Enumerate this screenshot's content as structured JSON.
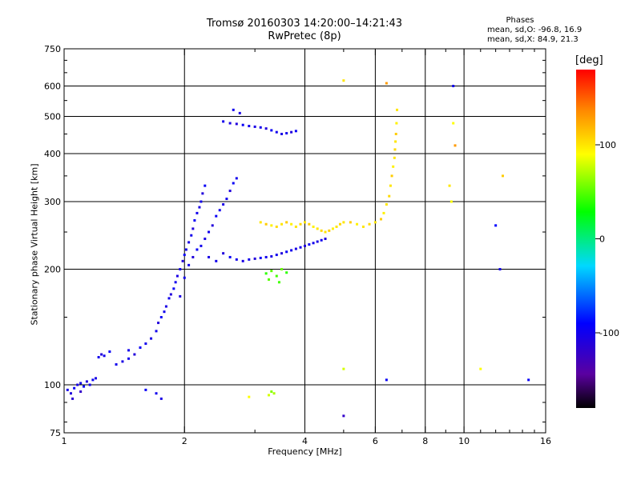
{
  "chart_data": {
    "type": "scatter",
    "title": "Tromsø 20160303 14:20:00–14:21:43",
    "subtitle": "RwPretec (8p)",
    "xlabel": "Frequency [MHz]",
    "ylabel": "Stationary phase Virtual Height [km]",
    "x_scale": "log",
    "y_scale": "log",
    "xlim": [
      1,
      16
    ],
    "ylim": [
      75,
      750
    ],
    "x_ticks": [
      1,
      2,
      4,
      6,
      8,
      10,
      16
    ],
    "x_ticks_labeled": [
      "1",
      "2",
      "4",
      "6",
      "8",
      "10",
      "16"
    ],
    "x_minor_ticks": [
      3,
      5,
      7,
      9,
      11,
      12,
      13,
      14,
      15
    ],
    "y_ticks": [
      75,
      100,
      200,
      300,
      400,
      500,
      600,
      750
    ],
    "y_tick_labels": [
      "75",
      "100",
      "200",
      "300",
      "400",
      "500",
      "600",
      "750"
    ],
    "grid": true,
    "legend": {
      "title": "Phases",
      "lines": [
        "mean, sd,O:  -96.8, 16.9",
        "mean, sd,X:  84.9, 21.3"
      ]
    },
    "colorbar": {
      "label": "[deg]",
      "range": [
        -180,
        180
      ],
      "ticks": [
        100,
        0,
        -100
      ],
      "tick_labels": [
        "100",
        "0",
        "-100"
      ]
    },
    "series": [
      {
        "points": [
          [
            1.02,
            97,
            -100
          ],
          [
            1.04,
            95,
            -110
          ],
          [
            1.06,
            98,
            -95
          ],
          [
            1.08,
            100,
            -105
          ],
          [
            1.1,
            101,
            -100
          ],
          [
            1.12,
            99,
            -90
          ],
          [
            1.14,
            102,
            -110
          ],
          [
            1.16,
            100,
            -100
          ],
          [
            1.18,
            103,
            -95
          ],
          [
            1.2,
            104,
            -105
          ],
          [
            1.22,
            118,
            -100
          ],
          [
            1.24,
            120,
            -110
          ],
          [
            1.26,
            119,
            -100
          ],
          [
            1.3,
            122,
            -95
          ],
          [
            1.35,
            113,
            -100
          ],
          [
            1.4,
            115,
            -105
          ],
          [
            1.45,
            117,
            -100
          ],
          [
            1.5,
            120,
            -110
          ],
          [
            1.55,
            125,
            -95
          ],
          [
            1.6,
            128,
            -100
          ],
          [
            1.65,
            132,
            -105
          ],
          [
            1.7,
            138,
            -100
          ],
          [
            1.72,
            145,
            -110
          ],
          [
            1.75,
            150,
            -95
          ],
          [
            1.78,
            155,
            -100
          ],
          [
            1.8,
            160,
            -105
          ],
          [
            1.83,
            168,
            -100
          ],
          [
            1.85,
            172,
            -110
          ],
          [
            1.88,
            178,
            -95
          ],
          [
            1.9,
            185,
            -100
          ],
          [
            1.92,
            192,
            -105
          ],
          [
            1.95,
            200,
            -100
          ],
          [
            1.98,
            210,
            -110
          ],
          [
            2.0,
            218,
            -95
          ],
          [
            2.02,
            225,
            -100
          ],
          [
            2.05,
            235,
            -105
          ],
          [
            2.08,
            245,
            -100
          ],
          [
            2.1,
            255,
            -110
          ],
          [
            2.12,
            268,
            -95
          ],
          [
            2.15,
            280,
            -100
          ],
          [
            2.18,
            290,
            -105
          ],
          [
            2.2,
            300,
            -100
          ],
          [
            2.22,
            315,
            -110
          ],
          [
            2.25,
            330,
            -95
          ],
          [
            2.0,
            190,
            -100
          ],
          [
            1.95,
            170,
            -105
          ],
          [
            2.05,
            205,
            -100
          ],
          [
            2.1,
            215,
            -110
          ],
          [
            2.15,
            225,
            -95
          ],
          [
            2.2,
            230,
            -100
          ],
          [
            2.25,
            240,
            -105
          ],
          [
            2.3,
            250,
            -100
          ],
          [
            2.35,
            260,
            -110
          ],
          [
            2.4,
            275,
            -95
          ],
          [
            2.45,
            285,
            -100
          ],
          [
            2.5,
            295,
            -105
          ],
          [
            2.55,
            305,
            -100
          ],
          [
            2.6,
            320,
            -110
          ],
          [
            2.65,
            335,
            -95
          ],
          [
            2.7,
            345,
            -100
          ],
          [
            2.3,
            215,
            -105
          ],
          [
            2.4,
            210,
            -100
          ],
          [
            2.5,
            220,
            -110
          ],
          [
            2.6,
            215,
            -95
          ],
          [
            2.7,
            212,
            -100
          ],
          [
            2.8,
            210,
            -105
          ],
          [
            2.9,
            212,
            -100
          ],
          [
            3.0,
            213,
            -110
          ],
          [
            3.1,
            214,
            -95
          ],
          [
            3.2,
            215,
            -100
          ],
          [
            3.3,
            216,
            -105
          ],
          [
            3.4,
            218,
            -100
          ],
          [
            3.5,
            220,
            -110
          ],
          [
            3.6,
            222,
            -95
          ],
          [
            3.7,
            224,
            -100
          ],
          [
            3.8,
            226,
            -105
          ],
          [
            3.9,
            228,
            -100
          ],
          [
            4.0,
            230,
            -110
          ],
          [
            4.1,
            232,
            -95
          ],
          [
            4.2,
            234,
            -100
          ],
          [
            4.3,
            236,
            -105
          ],
          [
            4.4,
            238,
            -100
          ],
          [
            4.5,
            240,
            -110
          ],
          [
            2.5,
            485,
            -100
          ],
          [
            2.6,
            480,
            -105
          ],
          [
            2.7,
            478,
            -110
          ],
          [
            2.8,
            475,
            -95
          ],
          [
            2.9,
            472,
            -100
          ],
          [
            3.0,
            470,
            -105
          ],
          [
            3.1,
            468,
            -100
          ],
          [
            3.2,
            465,
            -110
          ],
          [
            3.3,
            460,
            -95
          ],
          [
            3.4,
            455,
            -100
          ],
          [
            3.5,
            450,
            -105
          ],
          [
            3.6,
            452,
            -100
          ],
          [
            3.7,
            455,
            -110
          ],
          [
            3.8,
            458,
            -95
          ],
          [
            2.65,
            520,
            -100
          ],
          [
            2.75,
            510,
            -105
          ],
          [
            3.35,
            95,
            70
          ],
          [
            3.25,
            94,
            80
          ],
          [
            3.3,
            96,
            60
          ],
          [
            2.9,
            93,
            90
          ],
          [
            1.45,
            123,
            -100
          ],
          [
            1.1,
            96,
            -120
          ],
          [
            1.05,
            92,
            -115
          ],
          [
            1.7,
            95,
            -100
          ],
          [
            1.75,
            92,
            -105
          ],
          [
            1.6,
            97,
            -95
          ]
        ]
      },
      {
        "points": [
          [
            3.1,
            265,
            100
          ],
          [
            3.2,
            262,
            110
          ],
          [
            3.3,
            260,
            95
          ],
          [
            3.4,
            258,
            105
          ],
          [
            3.5,
            262,
            100
          ],
          [
            3.6,
            265,
            110
          ],
          [
            3.7,
            262,
            95
          ],
          [
            3.8,
            258,
            100
          ],
          [
            3.9,
            262,
            105
          ],
          [
            4.0,
            265,
            100
          ],
          [
            4.1,
            262,
            110
          ],
          [
            4.2,
            258,
            95
          ],
          [
            4.3,
            255,
            100
          ],
          [
            4.4,
            252,
            105
          ],
          [
            4.5,
            250,
            100
          ],
          [
            4.6,
            252,
            110
          ],
          [
            4.7,
            255,
            95
          ],
          [
            4.8,
            258,
            100
          ],
          [
            4.9,
            262,
            105
          ],
          [
            5.0,
            265,
            100
          ],
          [
            5.2,
            265,
            110
          ],
          [
            5.4,
            262,
            95
          ],
          [
            5.6,
            258,
            100
          ],
          [
            5.8,
            262,
            105
          ],
          [
            6.0,
            265,
            100
          ],
          [
            6.2,
            270,
            110
          ],
          [
            6.3,
            280,
            95
          ],
          [
            6.4,
            295,
            100
          ],
          [
            6.5,
            310,
            105
          ],
          [
            6.55,
            330,
            100
          ],
          [
            6.6,
            350,
            110
          ],
          [
            6.65,
            370,
            95
          ],
          [
            6.7,
            390,
            100
          ],
          [
            6.72,
            410,
            105
          ],
          [
            6.74,
            430,
            100
          ],
          [
            6.76,
            450,
            110
          ],
          [
            6.78,
            480,
            95
          ],
          [
            6.8,
            520,
            100
          ],
          [
            3.2,
            195,
            40
          ],
          [
            3.3,
            198,
            50
          ],
          [
            3.4,
            192,
            45
          ],
          [
            3.5,
            200,
            55
          ],
          [
            3.6,
            196,
            40
          ],
          [
            3.25,
            188,
            50
          ],
          [
            3.45,
            185,
            45
          ],
          [
            5.0,
            620,
            100
          ],
          [
            6.4,
            610,
            130
          ],
          [
            9.4,
            600,
            -100
          ],
          [
            9.4,
            480,
            90
          ],
          [
            9.5,
            420,
            130
          ],
          [
            9.2,
            330,
            100
          ],
          [
            9.3,
            300,
            90
          ],
          [
            12.5,
            350,
            110
          ],
          [
            12.0,
            260,
            -90
          ],
          [
            12.3,
            200,
            -100
          ],
          [
            14.5,
            103,
            -95
          ],
          [
            11.0,
            110,
            90
          ],
          [
            5.0,
            110,
            80
          ],
          [
            6.4,
            103,
            -95
          ],
          [
            5.0,
            83,
            -120
          ]
        ]
      }
    ]
  }
}
